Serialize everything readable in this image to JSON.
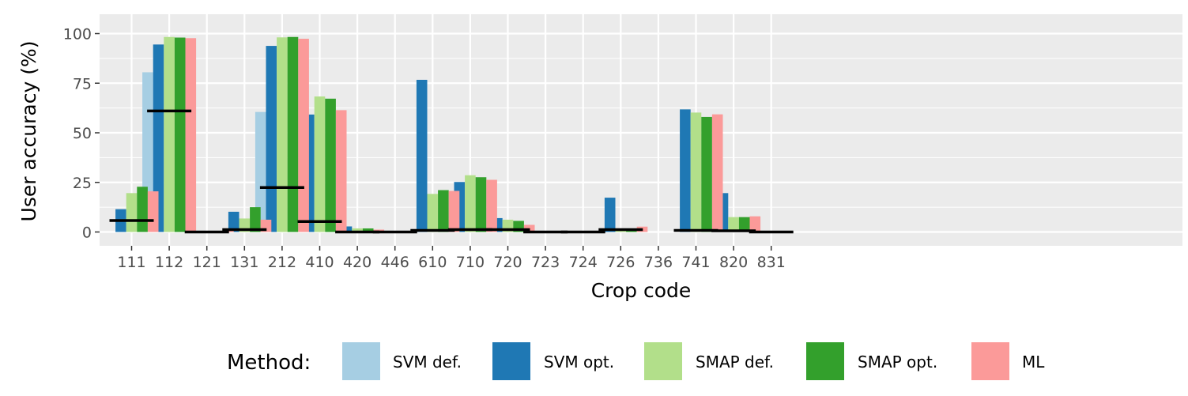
{
  "chart_data": {
    "type": "bar",
    "xlabel": "Crop code",
    "ylabel": "User accuracy (%)",
    "ylim": [
      0,
      100
    ],
    "yticks": [
      0,
      25,
      50,
      75,
      100
    ],
    "grid": true,
    "legend_position": "bottom",
    "legend_title": "Method:",
    "categories": [
      "111",
      "112",
      "121",
      "131",
      "212",
      "410",
      "420",
      "446",
      "610",
      "710",
      "720",
      "723",
      "724",
      "726",
      "736",
      "741",
      "820",
      "831"
    ],
    "series": [
      {
        "name": "SVM def.",
        "color": "#a6cee3",
        "values": [
          0,
          80.5,
          0,
          0,
          60.5,
          0,
          0,
          0,
          0,
          0,
          0,
          0,
          0,
          0,
          0,
          0,
          0,
          0
        ]
      },
      {
        "name": "SVM opt.",
        "color": "#1f78b4",
        "values": [
          11.5,
          94.5,
          0,
          10.2,
          93.8,
          59.2,
          2.8,
          0,
          76.7,
          25.2,
          7,
          0,
          0,
          17.3,
          0,
          61.8,
          19.6,
          0
        ]
      },
      {
        "name": "SMAP def.",
        "color": "#b2df8a",
        "values": [
          19.6,
          98.3,
          0,
          6.8,
          98.1,
          68.3,
          1.8,
          0,
          19.2,
          28.6,
          6.2,
          0,
          0,
          1.2,
          0,
          60.2,
          7.5,
          0
        ]
      },
      {
        "name": "SMAP opt.",
        "color": "#33a02c",
        "values": [
          22.8,
          98,
          0,
          12.5,
          98.3,
          67.2,
          1.8,
          0,
          21.1,
          27.6,
          5.6,
          0,
          0,
          1.2,
          0,
          58,
          7.5,
          0
        ]
      },
      {
        "name": "ML",
        "color": "#fb9a99",
        "values": [
          20.5,
          97.7,
          1.8,
          6.2,
          97.4,
          61.4,
          1.2,
          0,
          20.7,
          26.3,
          3.6,
          0,
          0,
          2.7,
          0,
          59.3,
          7.9,
          0
        ]
      }
    ],
    "reference_lines": [
      5.8,
      61,
      0,
      1.2,
      22.4,
      5.3,
      0,
      0,
      0.8,
      1.2,
      1.2,
      0,
      0,
      1.2,
      null,
      0.8,
      0.6,
      0
    ],
    "colors": {
      "panel": "#ebebeb",
      "grid": "#ffffff",
      "reference_line": "#000000"
    }
  }
}
